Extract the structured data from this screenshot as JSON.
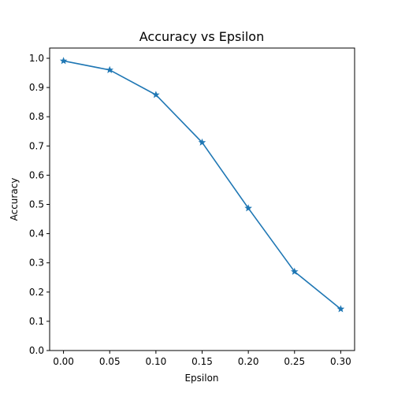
{
  "chart_data": {
    "type": "line",
    "title": "Accuracy vs Epsilon",
    "xlabel": "Epsilon",
    "ylabel": "Accuracy",
    "x_ticks": [
      "0.00",
      "0.05",
      "0.10",
      "0.15",
      "0.20",
      "0.25",
      "0.30"
    ],
    "y_ticks": [
      "0.0",
      "0.1",
      "0.2",
      "0.3",
      "0.4",
      "0.5",
      "0.6",
      "0.7",
      "0.8",
      "0.9",
      "1.0"
    ],
    "xlim": [
      -0.015,
      0.315
    ],
    "ylim": [
      0.0,
      1.035
    ],
    "grid": false,
    "marker": "star",
    "series": [
      {
        "color": "#1f77b4",
        "x": [
          0.0,
          0.05,
          0.1,
          0.15,
          0.2,
          0.25,
          0.3
        ],
        "y": [
          0.991,
          0.96,
          0.875,
          0.712,
          0.487,
          0.27,
          0.142
        ]
      }
    ]
  }
}
